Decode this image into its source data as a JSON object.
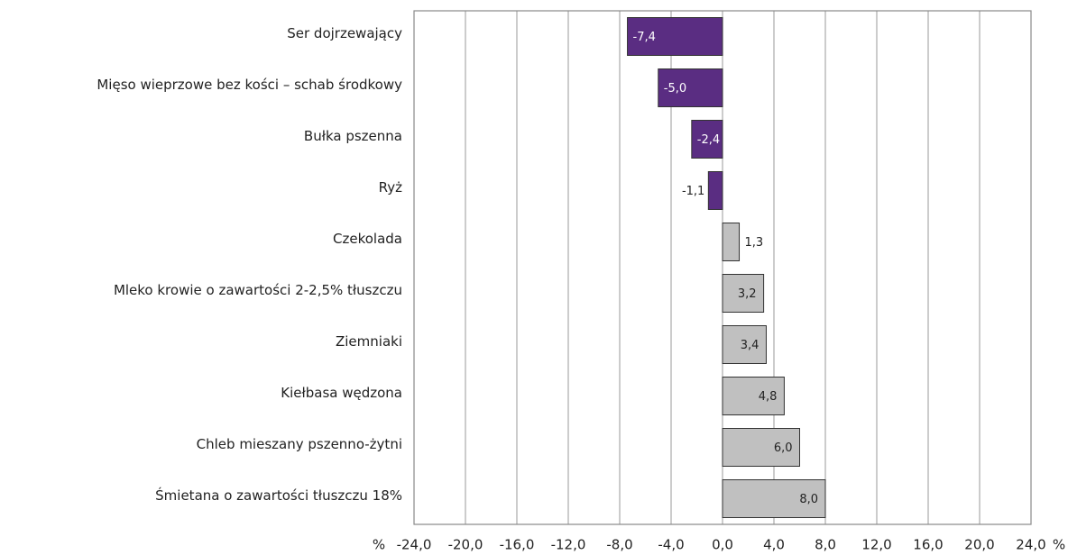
{
  "chart_data": {
    "type": "barh",
    "categories": [
      "Ser dojrzewający",
      "Mięso wieprzowe bez kości – schab środkowy",
      "Bułka pszenna",
      "Ryż",
      "Czekolada",
      "Mleko krowie o zawartości  2-2,5% tłuszczu",
      "Ziemniaki",
      "Kiełbasa wędzona",
      "Chleb mieszany pszenno-żytni",
      "Śmietana o zawartości tłuszczu 18%"
    ],
    "values": [
      -7.4,
      -5.0,
      -2.4,
      -1.1,
      1.3,
      3.2,
      3.4,
      4.8,
      6.0,
      8.0
    ],
    "value_labels": [
      "-7,4",
      "-5,0",
      "-2,4",
      "-1,1",
      "1,3",
      "3,2",
      "3,4",
      "4,8",
      "6,0",
      "8,0"
    ],
    "colors": [
      "#5a2d82",
      "#5a2d82",
      "#5a2d82",
      "#5a2d82",
      "#c0c0c0",
      "#c0c0c0",
      "#c0c0c0",
      "#c0c0c0",
      "#c0c0c0",
      "#c0c0c0"
    ],
    "x_unit": "%",
    "xlim": [
      -24,
      24
    ],
    "xticks": [
      {
        "value": -24,
        "label": "-24,0"
      },
      {
        "value": -20,
        "label": "-20,0"
      },
      {
        "value": -16,
        "label": "-16,0"
      },
      {
        "value": -12,
        "label": "-12,0"
      },
      {
        "value": -8,
        "label": "-8,0"
      },
      {
        "value": -4,
        "label": "-4,0"
      },
      {
        "value": 0,
        "label": "0,0"
      },
      {
        "value": 4,
        "label": "4,0"
      },
      {
        "value": 8,
        "label": "8,0"
      },
      {
        "value": 12,
        "label": "12,0"
      },
      {
        "value": 16,
        "label": "16,0"
      },
      {
        "value": 20,
        "label": "20,0"
      },
      {
        "value": 24,
        "label": "24,0"
      }
    ],
    "grid": true
  }
}
